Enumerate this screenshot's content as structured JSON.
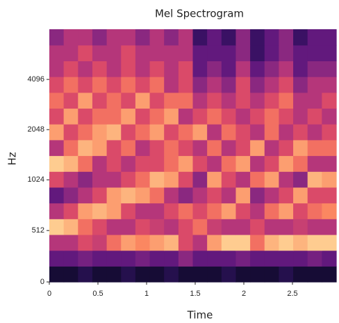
{
  "chart_data": {
    "type": "heatmap",
    "title": "Mel Spectrogram",
    "xlabel": "Time",
    "ylabel": "Hz",
    "xlim": [
      0,
      2.95
    ],
    "xticks": [
      0,
      0.5,
      1,
      1.5,
      2,
      2.5
    ],
    "ylim": [
      0,
      8192
    ],
    "yticks": [
      0,
      512,
      1024,
      2048,
      4096
    ],
    "yscale": "symlog",
    "linthresh": 1000,
    "linscale": 1,
    "base": 2,
    "colormap": "magma",
    "zlim": [
      0,
      1
    ],
    "z": [
      [
        0.1,
        0.1,
        0.15,
        0.1,
        0.1,
        0.15,
        0.1,
        0.1,
        0.15,
        0.1,
        0.1,
        0.1,
        0.15,
        0.1,
        0.1,
        0.1,
        0.15,
        0.1,
        0.1,
        0.1
      ],
      [
        0.3,
        0.3,
        0.35,
        0.3,
        0.3,
        0.3,
        0.35,
        0.3,
        0.3,
        0.4,
        0.3,
        0.3,
        0.3,
        0.35,
        0.3,
        0.3,
        0.3,
        0.3,
        0.35,
        0.3
      ],
      [
        0.5,
        0.5,
        0.6,
        0.55,
        0.7,
        0.8,
        0.75,
        0.8,
        0.85,
        0.6,
        0.5,
        0.8,
        0.9,
        0.9,
        0.7,
        0.85,
        0.9,
        0.85,
        0.9,
        0.9
      ],
      [
        0.9,
        0.85,
        0.7,
        0.6,
        0.5,
        0.5,
        0.6,
        0.55,
        0.5,
        0.6,
        0.7,
        0.55,
        0.5,
        0.5,
        0.6,
        0.5,
        0.5,
        0.55,
        0.5,
        0.5
      ],
      [
        0.5,
        0.6,
        0.8,
        0.85,
        0.8,
        0.6,
        0.5,
        0.5,
        0.6,
        0.7,
        0.6,
        0.7,
        0.8,
        0.6,
        0.5,
        0.7,
        0.8,
        0.6,
        0.7,
        0.75
      ],
      [
        0.3,
        0.4,
        0.5,
        0.6,
        0.8,
        0.85,
        0.8,
        0.7,
        0.5,
        0.4,
        0.5,
        0.6,
        0.5,
        0.8,
        0.4,
        0.5,
        0.6,
        0.8,
        0.6,
        0.6
      ],
      [
        0.6,
        0.5,
        0.4,
        0.5,
        0.5,
        0.6,
        0.7,
        0.85,
        0.8,
        0.6,
        0.4,
        0.8,
        0.6,
        0.5,
        0.7,
        0.8,
        0.5,
        0.4,
        0.85,
        0.8
      ],
      [
        0.9,
        0.85,
        0.7,
        0.5,
        0.6,
        0.5,
        0.6,
        0.6,
        0.7,
        0.8,
        0.6,
        0.5,
        0.7,
        0.8,
        0.5,
        0.6,
        0.8,
        0.7,
        0.5,
        0.5
      ],
      [
        0.5,
        0.7,
        0.85,
        0.8,
        0.6,
        0.7,
        0.5,
        0.6,
        0.7,
        0.6,
        0.5,
        0.7,
        0.5,
        0.6,
        0.8,
        0.5,
        0.6,
        0.8,
        0.7,
        0.7
      ],
      [
        0.8,
        0.6,
        0.7,
        0.8,
        0.85,
        0.6,
        0.7,
        0.8,
        0.6,
        0.7,
        0.8,
        0.5,
        0.7,
        0.6,
        0.5,
        0.7,
        0.5,
        0.6,
        0.5,
        0.6
      ],
      [
        0.6,
        0.8,
        0.6,
        0.7,
        0.7,
        0.8,
        0.6,
        0.7,
        0.8,
        0.5,
        0.6,
        0.7,
        0.6,
        0.5,
        0.6,
        0.7,
        0.6,
        0.5,
        0.6,
        0.5
      ],
      [
        0.7,
        0.6,
        0.8,
        0.6,
        0.7,
        0.6,
        0.8,
        0.6,
        0.7,
        0.7,
        0.5,
        0.6,
        0.5,
        0.6,
        0.5,
        0.6,
        0.7,
        0.5,
        0.5,
        0.6
      ],
      [
        0.6,
        0.7,
        0.6,
        0.7,
        0.6,
        0.7,
        0.6,
        0.7,
        0.5,
        0.6,
        0.4,
        0.5,
        0.4,
        0.6,
        0.4,
        0.5,
        0.6,
        0.4,
        0.5,
        0.5
      ],
      [
        0.5,
        0.6,
        0.5,
        0.6,
        0.5,
        0.6,
        0.5,
        0.6,
        0.5,
        0.6,
        0.3,
        0.4,
        0.3,
        0.5,
        0.3,
        0.4,
        0.5,
        0.3,
        0.4,
        0.4
      ],
      [
        0.5,
        0.5,
        0.6,
        0.5,
        0.5,
        0.6,
        0.5,
        0.5,
        0.5,
        0.5,
        0.3,
        0.3,
        0.3,
        0.4,
        0.2,
        0.3,
        0.4,
        0.3,
        0.3,
        0.3
      ],
      [
        0.4,
        0.5,
        0.5,
        0.4,
        0.5,
        0.5,
        0.4,
        0.5,
        0.4,
        0.5,
        0.2,
        0.3,
        0.2,
        0.4,
        0.2,
        0.3,
        0.4,
        0.2,
        0.3,
        0.3
      ]
    ]
  }
}
